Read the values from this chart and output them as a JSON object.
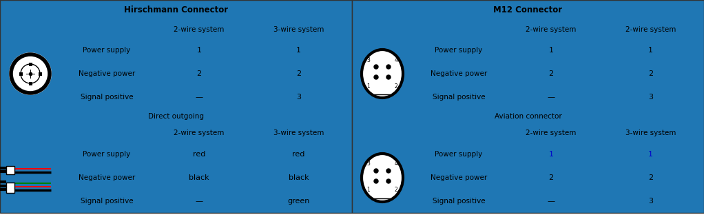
{
  "fig_width": 10.22,
  "fig_height": 3.15,
  "dpi": 100,
  "bg_color": "#ffffff",
  "left_header": "Hirschmann Connector",
  "right_header": "M12 Connector",
  "left_sections": [
    {
      "sub_header": null,
      "col1_header": "2-wire system",
      "col2_header": "3-wire system",
      "rows": [
        {
          "label": "Power supply",
          "col1": "1",
          "col2": "1",
          "col1_color": "black",
          "col2_color": "black"
        },
        {
          "label": "Negative power",
          "col1": "2",
          "col2": "2",
          "col1_color": "black",
          "col2_color": "black"
        },
        {
          "label": "Signal positive",
          "col1": "—",
          "col2": "3",
          "col1_color": "black",
          "col2_color": "black"
        }
      ]
    },
    {
      "sub_header": "Direct outgoing",
      "col1_header": "2-wire system",
      "col2_header": "3-wire system",
      "rows": [
        {
          "label": "Power supply",
          "col1": "red",
          "col2": "red",
          "col1_color": "black",
          "col2_color": "black"
        },
        {
          "label": "Negative power",
          "col1": "black",
          "col2": "black",
          "col1_color": "black",
          "col2_color": "black"
        },
        {
          "label": "Signal positive",
          "col1": "—",
          "col2": "green",
          "col1_color": "black",
          "col2_color": "black"
        }
      ]
    }
  ],
  "right_sections": [
    {
      "sub_header": null,
      "col1_header": "2-wire system",
      "col2_header": "2-wire system",
      "rows": [
        {
          "label": "Power supply",
          "col1": "1",
          "col2": "1",
          "col1_color": "black",
          "col2_color": "black"
        },
        {
          "label": "Negative power",
          "col1": "2",
          "col2": "2",
          "col1_color": "black",
          "col2_color": "black"
        },
        {
          "label": "Signal positive",
          "col1": "—",
          "col2": "3",
          "col1_color": "black",
          "col2_color": "black"
        }
      ]
    },
    {
      "sub_header": "Aviation connector",
      "col1_header": "2-wire system",
      "col2_header": "3-wire system",
      "rows": [
        {
          "label": "Power supply",
          "col1": "1",
          "col2": "1",
          "col1_color": "#0000cc",
          "col2_color": "#0000cc"
        },
        {
          "label": "Negative power",
          "col1": "2",
          "col2": "2",
          "col1_color": "black",
          "col2_color": "black"
        },
        {
          "label": "Signal positive",
          "col1": "—",
          "col2": "3",
          "col1_color": "black",
          "col2_color": "black"
        }
      ]
    }
  ]
}
